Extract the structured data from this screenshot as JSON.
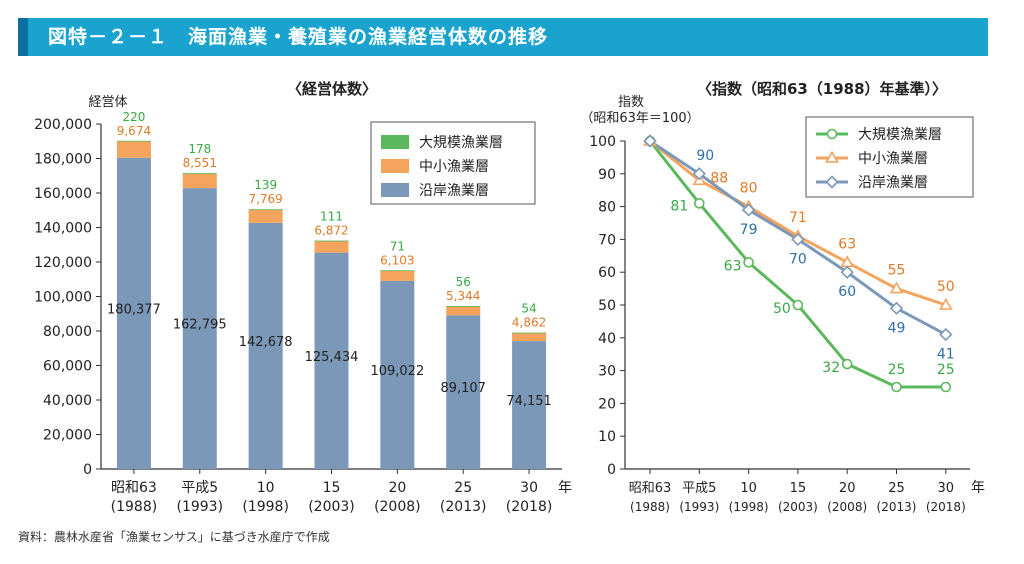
{
  "header": {
    "title": "図特－２－１　海面漁業・養殖業の漁業経営体数の推移"
  },
  "source_note": "資料：農林水産省「漁業センサス」に基づき水産庁で作成",
  "colors": {
    "header": "#1aa3cf",
    "large": "#5cb85c",
    "medium": "#f5a45d",
    "coastal": "#7b98b8",
    "large_text": "#3aa845",
    "medium_text": "#e07b28",
    "coastal_text": "#2f6ea6"
  },
  "chart_data": [
    {
      "type": "bar",
      "stacked": true,
      "title": "〈経営体数〉",
      "ylabel": "経営体",
      "xunit": "年",
      "ylim": [
        0,
        200000
      ],
      "yticks": [
        0,
        20000,
        40000,
        60000,
        80000,
        100000,
        120000,
        140000,
        160000,
        180000,
        200000
      ],
      "ytick_labels": [
        "0",
        "20,000",
        "40,000",
        "60,000",
        "80,000",
        "100,000",
        "120,000",
        "140,000",
        "160,000",
        "180,000",
        "200,000"
      ],
      "categories": [
        {
          "line1": "昭和63",
          "line2": "(1988)"
        },
        {
          "line1": "平成5",
          "line2": "(1993)"
        },
        {
          "line1": "10",
          "line2": "(1998)"
        },
        {
          "line1": "15",
          "line2": "(2003)"
        },
        {
          "line1": "20",
          "line2": "(2008)"
        },
        {
          "line1": "25",
          "line2": "(2013)"
        },
        {
          "line1": "30",
          "line2": "(2018)"
        }
      ],
      "series": [
        {
          "name": "沿岸漁業層",
          "key": "coastal",
          "values": [
            180377,
            162795,
            142678,
            125434,
            109022,
            89107,
            74151
          ],
          "labels": [
            "180,377",
            "162,795",
            "142,678",
            "125,434",
            "109,022",
            "89,107",
            "74,151"
          ]
        },
        {
          "name": "中小漁業層",
          "key": "medium",
          "values": [
            9674,
            8551,
            7769,
            6872,
            6103,
            5344,
            4862
          ],
          "labels": [
            "9,674",
            "8,551",
            "7,769",
            "6,872",
            "6,103",
            "5,344",
            "4,862"
          ]
        },
        {
          "name": "大規模漁業層",
          "key": "large",
          "values": [
            220,
            178,
            139,
            111,
            71,
            56,
            54
          ],
          "labels": [
            "220",
            "178",
            "139",
            "111",
            "71",
            "56",
            "54"
          ]
        }
      ],
      "legend": [
        "大規模漁業層",
        "中小漁業層",
        "沿岸漁業層"
      ],
      "legend_position": "top-right"
    },
    {
      "type": "line",
      "title": "〈指数（昭和63（1988）年基準）〉",
      "ylabel": "指数",
      "ylabel2": "（昭和63年＝100）",
      "xunit": "年",
      "ylim": [
        0,
        100
      ],
      "yticks": [
        0,
        10,
        20,
        30,
        40,
        50,
        60,
        70,
        80,
        90,
        100
      ],
      "categories": [
        {
          "line1": "昭和63",
          "line2": "(1988)"
        },
        {
          "line1": "平成5",
          "line2": "(1993)"
        },
        {
          "line1": "10",
          "line2": "(1998)"
        },
        {
          "line1": "15",
          "line2": "(2003)"
        },
        {
          "line1": "20",
          "line2": "(2008)"
        },
        {
          "line1": "25",
          "line2": "(2013)"
        },
        {
          "line1": "30",
          "line2": "(2018)"
        }
      ],
      "series": [
        {
          "name": "大規模漁業層",
          "key": "large",
          "marker": "circle",
          "values": [
            100,
            81,
            63,
            50,
            32,
            25,
            25
          ],
          "labels": [
            "",
            "81",
            "63",
            "50",
            "32",
            "25",
            "25"
          ]
        },
        {
          "name": "中小漁業層",
          "key": "medium",
          "marker": "triangle",
          "values": [
            100,
            88,
            80,
            71,
            63,
            55,
            50
          ],
          "labels": [
            "",
            "88",
            "80",
            "71",
            "63",
            "55",
            "50"
          ]
        },
        {
          "name": "沿岸漁業層",
          "key": "coastal",
          "marker": "diamond",
          "values": [
            100,
            90,
            79,
            70,
            60,
            49,
            41
          ],
          "labels": [
            "",
            "90",
            "79",
            "70",
            "60",
            "49",
            "41"
          ]
        }
      ],
      "legend": [
        "大規模漁業層",
        "中小漁業層",
        "沿岸漁業層"
      ],
      "legend_position": "top-right"
    }
  ]
}
